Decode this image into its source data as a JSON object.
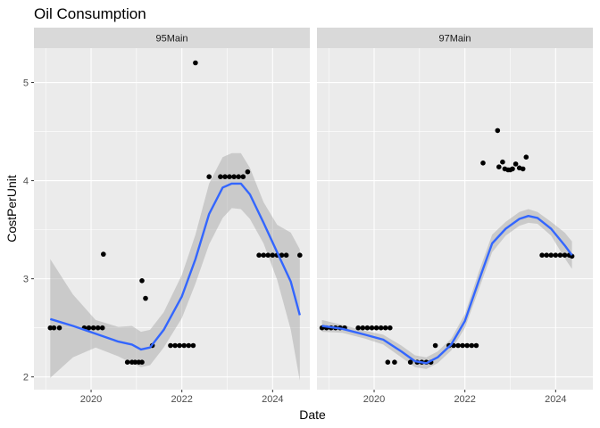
{
  "chart_data": {
    "type": "scatter",
    "title": "Oil Consumption",
    "xlabel": "Date",
    "ylabel": "CostPerUnit",
    "x_ticks": [
      2020,
      2022,
      2024
    ],
    "x_tick_labels": [
      "2020",
      "2022",
      "2024"
    ],
    "y_ticks": [
      2,
      3,
      4,
      5
    ],
    "y_tick_labels": [
      "2",
      "3",
      "4",
      "5"
    ],
    "xlim": [
      2018.74,
      2024.82
    ],
    "ylim": [
      1.87,
      5.35
    ],
    "grid": true,
    "colors": {
      "panel_bg": "#ebebeb",
      "strip_bg": "#d9d9d9",
      "grid": "#ffffff",
      "point": "#000000",
      "smooth_line": "#3366ff",
      "ribbon": "#999999"
    },
    "facets": [
      {
        "label": "95Main",
        "points": [
          [
            2019.1,
            2.5
          ],
          [
            2019.18,
            2.5
          ],
          [
            2019.3,
            2.5
          ],
          [
            2019.85,
            2.5
          ],
          [
            2019.95,
            2.5
          ],
          [
            2020.05,
            2.5
          ],
          [
            2020.15,
            2.5
          ],
          [
            2020.25,
            2.5
          ],
          [
            2020.27,
            3.25
          ],
          [
            2020.8,
            2.15
          ],
          [
            2020.9,
            2.15
          ],
          [
            2020.97,
            2.15
          ],
          [
            2021.05,
            2.15
          ],
          [
            2021.12,
            2.15
          ],
          [
            2021.12,
            2.98
          ],
          [
            2021.2,
            2.8
          ],
          [
            2021.35,
            2.32
          ],
          [
            2021.75,
            2.32
          ],
          [
            2021.85,
            2.32
          ],
          [
            2021.95,
            2.32
          ],
          [
            2022.05,
            2.32
          ],
          [
            2022.15,
            2.32
          ],
          [
            2022.25,
            2.32
          ],
          [
            2022.3,
            5.2
          ],
          [
            2022.6,
            4.04
          ],
          [
            2022.85,
            4.04
          ],
          [
            2022.95,
            4.04
          ],
          [
            2023.05,
            4.04
          ],
          [
            2023.15,
            4.04
          ],
          [
            2023.25,
            4.04
          ],
          [
            2023.35,
            4.04
          ],
          [
            2023.45,
            4.09
          ],
          [
            2023.7,
            3.24
          ],
          [
            2023.8,
            3.24
          ],
          [
            2023.9,
            3.24
          ],
          [
            2024.0,
            3.24
          ],
          [
            2024.1,
            3.24
          ],
          [
            2024.2,
            3.24
          ],
          [
            2024.3,
            3.24
          ],
          [
            2024.6,
            3.24
          ]
        ],
        "smooth": {
          "x": [
            2019.1,
            2019.6,
            2020.1,
            2020.6,
            2020.9,
            2021.1,
            2021.3,
            2021.6,
            2022.0,
            2022.3,
            2022.6,
            2022.9,
            2023.1,
            2023.3,
            2023.5,
            2023.8,
            2024.1,
            2024.4,
            2024.6
          ],
          "y": [
            2.59,
            2.52,
            2.44,
            2.36,
            2.33,
            2.28,
            2.3,
            2.48,
            2.82,
            3.2,
            3.66,
            3.93,
            3.97,
            3.97,
            3.86,
            3.57,
            3.27,
            2.97,
            2.63
          ],
          "ymin": [
            1.99,
            2.2,
            2.3,
            2.21,
            2.14,
            2.1,
            2.12,
            2.3,
            2.6,
            2.95,
            3.35,
            3.62,
            3.72,
            3.71,
            3.61,
            3.36,
            2.99,
            2.48,
            1.96
          ],
          "ymax": [
            3.2,
            2.84,
            2.58,
            2.51,
            2.52,
            2.46,
            2.48,
            2.66,
            3.04,
            3.45,
            3.97,
            4.24,
            4.28,
            4.28,
            4.13,
            3.78,
            3.55,
            3.47,
            3.3
          ]
        }
      },
      {
        "label": "97Main",
        "points": [
          [
            2018.85,
            2.5
          ],
          [
            2018.95,
            2.5
          ],
          [
            2019.05,
            2.5
          ],
          [
            2019.15,
            2.5
          ],
          [
            2019.25,
            2.5
          ],
          [
            2019.35,
            2.5
          ],
          [
            2019.65,
            2.5
          ],
          [
            2019.75,
            2.5
          ],
          [
            2019.85,
            2.5
          ],
          [
            2019.95,
            2.5
          ],
          [
            2020.05,
            2.5
          ],
          [
            2020.15,
            2.5
          ],
          [
            2020.25,
            2.5
          ],
          [
            2020.35,
            2.5
          ],
          [
            2020.3,
            2.15
          ],
          [
            2020.45,
            2.15
          ],
          [
            2020.8,
            2.15
          ],
          [
            2020.95,
            2.15
          ],
          [
            2021.05,
            2.15
          ],
          [
            2021.15,
            2.15
          ],
          [
            2021.25,
            2.15
          ],
          [
            2021.35,
            2.32
          ],
          [
            2021.65,
            2.32
          ],
          [
            2021.75,
            2.32
          ],
          [
            2021.85,
            2.32
          ],
          [
            2021.95,
            2.32
          ],
          [
            2022.05,
            2.32
          ],
          [
            2022.15,
            2.32
          ],
          [
            2022.25,
            2.32
          ],
          [
            2022.4,
            4.18
          ],
          [
            2022.72,
            4.51
          ],
          [
            2022.75,
            4.14
          ],
          [
            2022.83,
            4.19
          ],
          [
            2022.88,
            4.12
          ],
          [
            2022.95,
            4.11
          ],
          [
            2023.0,
            4.11
          ],
          [
            2023.05,
            4.12
          ],
          [
            2023.12,
            4.17
          ],
          [
            2023.2,
            4.13
          ],
          [
            2023.28,
            4.12
          ],
          [
            2023.35,
            4.24
          ],
          [
            2023.7,
            3.24
          ],
          [
            2023.8,
            3.24
          ],
          [
            2023.9,
            3.24
          ],
          [
            2024.0,
            3.24
          ],
          [
            2024.1,
            3.24
          ],
          [
            2024.2,
            3.24
          ],
          [
            2024.3,
            3.24
          ],
          [
            2024.36,
            3.23
          ]
        ],
        "smooth": {
          "x": [
            2018.85,
            2019.3,
            2019.8,
            2020.2,
            2020.6,
            2020.9,
            2021.15,
            2021.4,
            2021.7,
            2022.0,
            2022.3,
            2022.6,
            2022.9,
            2023.2,
            2023.4,
            2023.6,
            2023.9,
            2024.2,
            2024.36
          ],
          "y": [
            2.52,
            2.49,
            2.43,
            2.38,
            2.26,
            2.16,
            2.14,
            2.2,
            2.33,
            2.57,
            2.97,
            3.36,
            3.51,
            3.61,
            3.64,
            3.62,
            3.51,
            3.34,
            3.24
          ],
          "ymin": [
            2.46,
            2.45,
            2.39,
            2.33,
            2.2,
            2.1,
            2.08,
            2.14,
            2.27,
            2.5,
            2.88,
            3.27,
            3.44,
            3.54,
            3.57,
            3.56,
            3.44,
            3.21,
            3.1
          ],
          "ymax": [
            2.58,
            2.53,
            2.47,
            2.43,
            2.32,
            2.22,
            2.2,
            2.26,
            2.39,
            2.64,
            3.06,
            3.45,
            3.58,
            3.68,
            3.71,
            3.68,
            3.58,
            3.47,
            3.38
          ]
        }
      }
    ]
  }
}
